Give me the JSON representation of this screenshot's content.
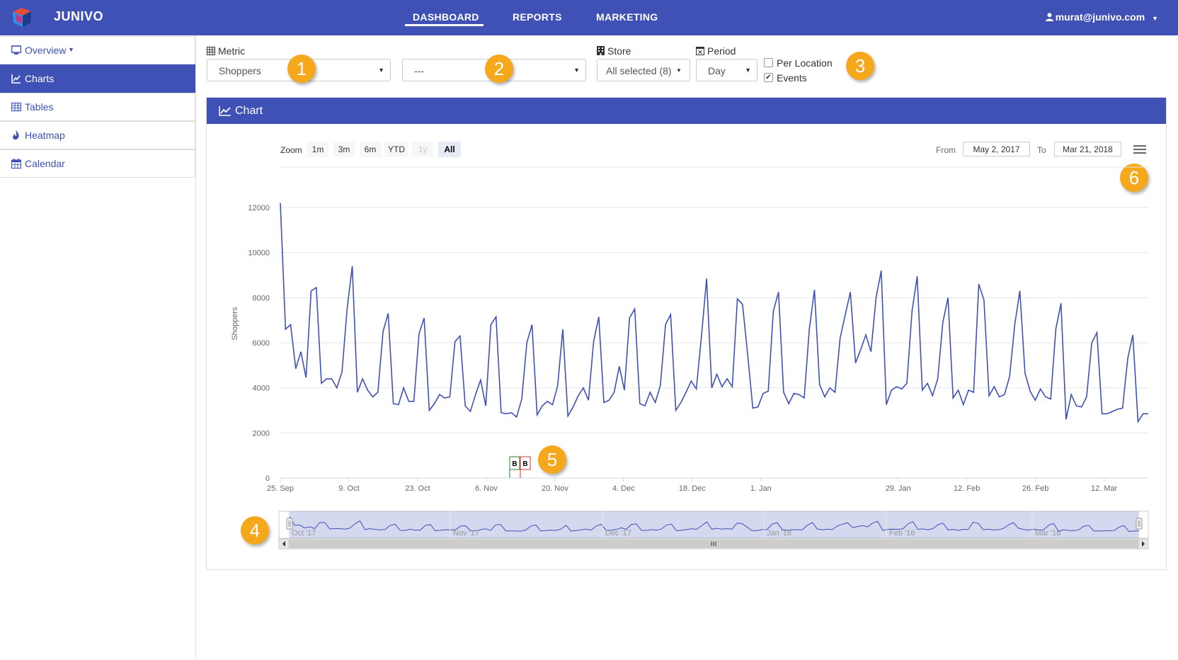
{
  "app": {
    "brand": "JUNIVO"
  },
  "nav": [
    {
      "label": "DASHBOARD",
      "active": true
    },
    {
      "label": "REPORTS",
      "active": false
    },
    {
      "label": "MARKETING",
      "active": false
    }
  ],
  "user": {
    "email": "murat@junivo.com"
  },
  "sidebar": {
    "items": [
      {
        "label": "Overview",
        "icon": "monitor-icon",
        "active": false
      },
      {
        "label": "Charts",
        "icon": "line-chart-icon",
        "active": true
      },
      {
        "label": "Tables",
        "icon": "table-icon",
        "active": false
      },
      {
        "label": "Heatmap",
        "icon": "fire-icon",
        "active": false
      },
      {
        "label": "Calendar",
        "icon": "calendar-icon",
        "active": false
      }
    ]
  },
  "controls": {
    "metric_label": "Metric",
    "metric_value": "Shoppers",
    "metric2_value": "---",
    "store_label": "Store",
    "store_value": "All selected (8)",
    "period_label": "Period",
    "period_value": "Day",
    "per_location_label": "Per Location",
    "per_location_checked": false,
    "events_label": "Events",
    "events_checked": true
  },
  "badges": [
    "1",
    "2",
    "3",
    "4",
    "5",
    "6"
  ],
  "panel": {
    "title": "Chart"
  },
  "zoom": {
    "label": "Zoom",
    "buttons": [
      "1m",
      "3m",
      "6m",
      "YTD",
      "1y",
      "All"
    ],
    "selected": "All",
    "disabled": [
      "1y"
    ]
  },
  "range": {
    "from_label": "From",
    "from": "May 2, 2017",
    "to_label": "To",
    "to": "Mar 21, 2018"
  },
  "chart_data": {
    "type": "line",
    "title": "",
    "xlabel": "",
    "ylabel": "Shoppers",
    "ylim": [
      0,
      12000
    ],
    "y_ticks": [
      0,
      2000,
      4000,
      6000,
      8000,
      10000,
      12000
    ],
    "x_ticks": [
      "25. Sep",
      "9. Oct",
      "23. Oct",
      "6. Nov",
      "20. Nov",
      "4. Dec",
      "18. Dec",
      "1. Jan",
      "29. Jan",
      "12. Feb",
      "26. Feb",
      "12. Mar"
    ],
    "x_range": [
      "2017-09-25",
      "2018-03-21"
    ],
    "grid": true,
    "series": [
      {
        "color": "#3f51b5",
        "values": [
          12200,
          6600,
          6800,
          4850,
          5600,
          4450,
          8300,
          8450,
          4200,
          4400,
          4400,
          4000,
          4700,
          7500,
          9400,
          3800,
          4400,
          3900,
          3600,
          3800,
          6500,
          7300,
          3300,
          3250,
          4000,
          3400,
          3400,
          6400,
          7100,
          3000,
          3300,
          3700,
          3550,
          3600,
          6050,
          6300,
          3200,
          2950,
          3700,
          4350,
          3200,
          6800,
          7150,
          2900,
          2850,
          2900,
          2700,
          3500,
          6000,
          6800,
          2800,
          3200,
          3400,
          3250,
          4100,
          6600,
          2750,
          3150,
          3650,
          4000,
          3450,
          6050,
          7150,
          3350,
          3450,
          3800,
          4950,
          3900,
          7100,
          7500,
          3300,
          3200,
          3800,
          3350,
          4100,
          6800,
          7250,
          3000,
          3350,
          3800,
          4300,
          3950,
          6300,
          8850,
          4000,
          4600,
          4050,
          4400,
          4050,
          7950,
          7700,
          5450,
          3100,
          3150,
          3750,
          3850,
          7400,
          8250,
          3800,
          3300,
          3750,
          3700,
          3550,
          6600,
          8350,
          4150,
          3600,
          4000,
          3800,
          6200,
          7250,
          8250,
          5100,
          5700,
          6350,
          5600,
          8000,
          9200,
          3250,
          3900,
          4050,
          3950,
          4200,
          7400,
          8950,
          3900,
          4200,
          3650,
          4400,
          6900,
          8000,
          3550,
          3900,
          3250,
          3900,
          3800,
          8600,
          7900,
          3650,
          4050,
          3600,
          3700,
          4500,
          6800,
          8300,
          4650,
          3850,
          3450,
          3950,
          3600,
          3500,
          6600,
          7750,
          2600,
          3700,
          3200,
          3150,
          3600,
          6000,
          6450,
          2850,
          2850,
          2950,
          3050,
          3100,
          5300,
          6350,
          2500,
          2850,
          2850
        ]
      }
    ],
    "events": [
      "B",
      "B"
    ],
    "navigator": {
      "labels": [
        "Oct '17",
        "Nov '17",
        "Dec '17",
        "Jan '18",
        "Feb '18",
        "Mar '18"
      ]
    }
  },
  "colors": {
    "primary": "#3f51b5",
    "accent": "#f5a81c"
  }
}
